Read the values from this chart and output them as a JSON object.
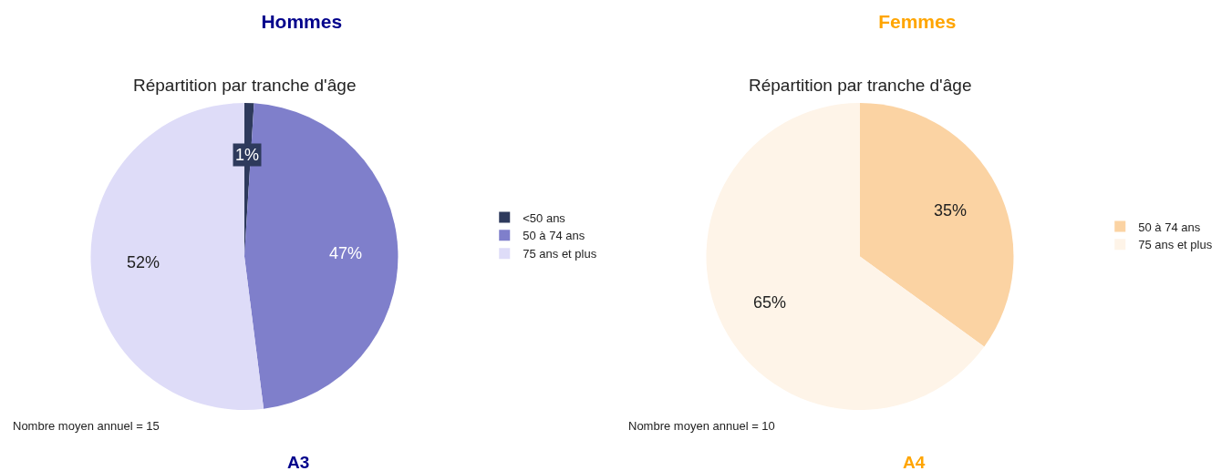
{
  "chart_data": [
    {
      "type": "pie",
      "title": "Hommes",
      "subtitle": "Répartition par tranche d'âge",
      "categories": [
        "<50 ans",
        "50 à 74 ans",
        "75 ans et plus"
      ],
      "values": [
        1,
        47,
        52
      ],
      "value_labels": [
        "1%",
        "47%",
        "52%"
      ],
      "colors": [
        "#2e3a5c",
        "#7f7fcb",
        "#dedcf8"
      ],
      "legend": "right",
      "annotations": [
        "Nombre moyen annuel = 15",
        "A3"
      ]
    },
    {
      "type": "pie",
      "title": "Femmes",
      "subtitle": "Répartition par tranche d'âge",
      "categories": [
        "50 à 74 ans",
        "75 ans et plus"
      ],
      "values": [
        35,
        65
      ],
      "value_labels": [
        "35%",
        "65%"
      ],
      "colors": [
        "#fbd3a3",
        "#fef4e8"
      ],
      "legend": "right",
      "annotations": [
        "Nombre moyen annuel = 10",
        "A4"
      ]
    }
  ]
}
